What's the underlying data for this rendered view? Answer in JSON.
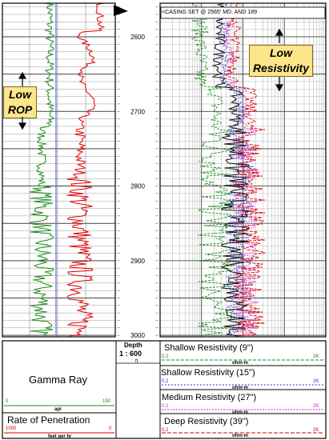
{
  "depth_track": {
    "ticks": [
      "2600",
      "2700",
      "2800",
      "2900",
      "3000"
    ],
    "tick_values": [
      2600,
      2700,
      2800,
      2900,
      3000
    ],
    "top_depth": 2555,
    "bottom_depth": 3002
  },
  "casing_note": "<CASING SET @ 2565' MD. AND 189",
  "annotations": {
    "low_rop": [
      "Low",
      "ROP"
    ],
    "low_resistivity": [
      "Low",
      "Resistivity"
    ],
    "box_color": "#fde58a"
  },
  "header": {
    "depth_label": "Depth",
    "scale_label": "1 : 600",
    "unit_label": "ft",
    "gamma_ray": {
      "title": "Gamma Ray",
      "min": "0",
      "max": "150",
      "unit": "api",
      "color": "#1a8a1a"
    },
    "rop": {
      "title": "Rate of Penetration",
      "min": "1000",
      "max": "0",
      "unit": "feet per hr",
      "color": "#e00000"
    },
    "resistivity": [
      {
        "title": "Shallow  Resistivity (9\")",
        "min": "0.2",
        "max": "2K",
        "unit": "ohm-m",
        "color": "#1a8a1a"
      },
      {
        "title": "Shallow Resistivity (15\")",
        "min": "0.2",
        "max": "2K",
        "unit": "ohm-m",
        "color": "#1f3fd6"
      },
      {
        "title": "Medium Resistivity (27\")",
        "min": "0.2",
        "max": "2K",
        "unit": "ohm-m",
        "color": "#d020d0"
      },
      {
        "title": "Deep Resistivity (39\")",
        "min": "0.2",
        "max": "2K",
        "unit": "ohm-m",
        "color": "#e00000"
      }
    ]
  },
  "colors": {
    "grid": "#9a9a9a",
    "grid_major": "#444444",
    "gamma": "#1a8a1a",
    "rop": "#e00000",
    "res_shallow9": "#1a8a1a",
    "res_shallow15": "#1f3fd6",
    "res_medium": "#d020d0",
    "res_deep": "#e00000",
    "res_avg": "#111111",
    "reference_line": "#7080d0"
  }
}
